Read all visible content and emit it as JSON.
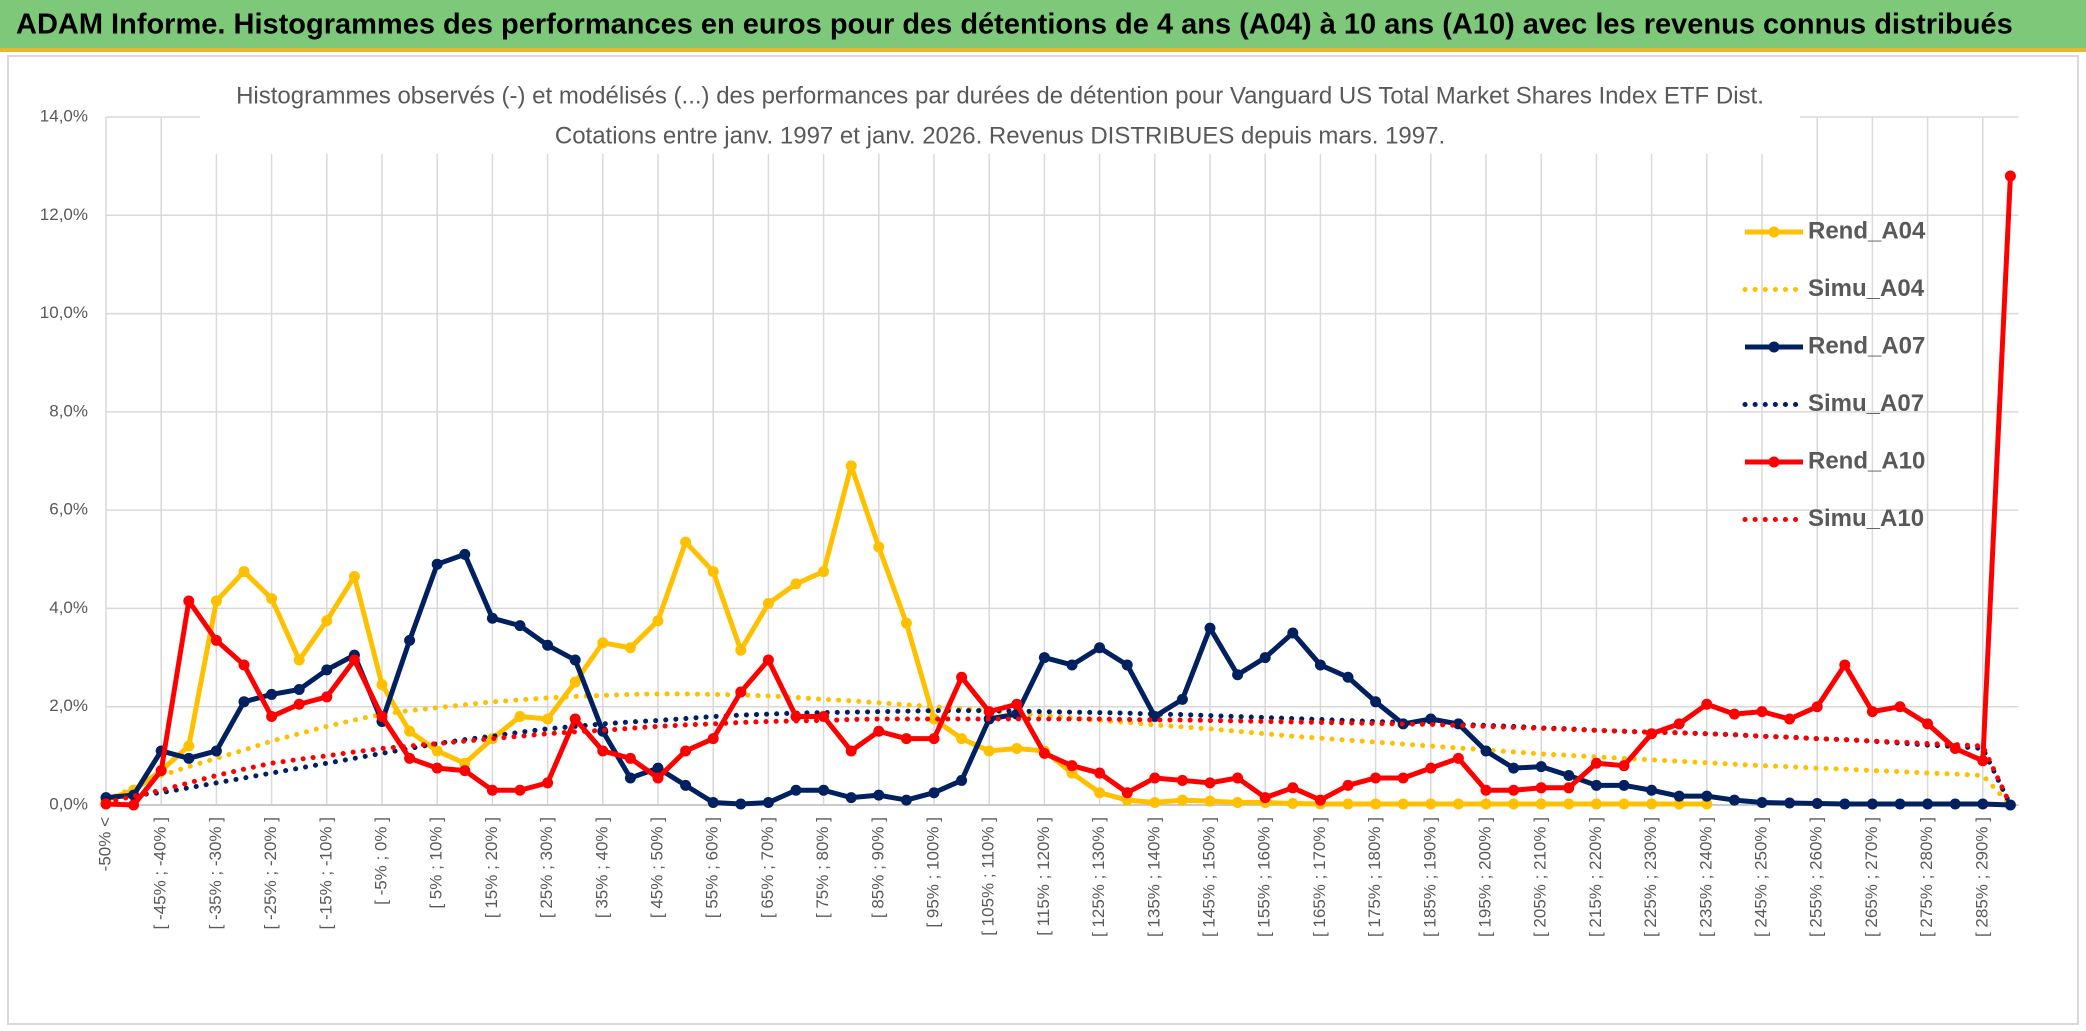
{
  "header": {
    "title": "ADAM Informe. Histogrammes des performances en euros pour des détentions de 4 ans (A04) à 10 ans (A10) avec les revenus connus distribués"
  },
  "chart_data": {
    "type": "line",
    "title": "Histogrammes observés (-) et modélisés (...) des performances par durées de détention pour Vanguard US Total Market Shares Index ETF Dist.",
    "subtitle": "Cotations entre janv. 1997 et janv. 2026. Revenus DISTRIBUES depuis mars. 1997.",
    "grid": true,
    "legend": "right",
    "categories": [
      "-50% <",
      null,
      "[ -45% ; -40% ]",
      null,
      "[ -35% ; -30% ]",
      null,
      "[ -25% ; -20% ]",
      null,
      "[ -15% ; -10% ]",
      null,
      "[ -5% ; 0% ]",
      null,
      "[ 5% ; 10% ]",
      null,
      "[ 15% ; 20% ]",
      null,
      "[ 25% ; 30% ]",
      null,
      "[ 35% ; 40% ]",
      null,
      "[ 45% ; 50% ]",
      null,
      "[ 55% ; 60% ]",
      null,
      "[ 65% ; 70% ]",
      null,
      "[ 75% ; 80% ]",
      null,
      "[ 85% ; 90% ]",
      null,
      "[ 95% ; 100% ]",
      null,
      "[ 105% ; 110% ]",
      null,
      "[ 115% ; 120% ]",
      null,
      "[ 125% ; 130% ]",
      null,
      "[ 135% ; 140% ]",
      null,
      "[ 145% ; 150% ]",
      null,
      "[ 155% ; 160% ]",
      null,
      "[ 165% ; 170% ]",
      null,
      "[ 175% ; 180% ]",
      null,
      "[ 185% ; 190% ]",
      null,
      "[ 195% ; 200% ]",
      null,
      "[ 205% ; 210% ]",
      null,
      "[ 215% ; 220% ]",
      null,
      "[ 225% ; 230% ]",
      null,
      "[ 235% ; 240% ]",
      null,
      "[ 245% ; 250% ]",
      null,
      "[ 255% ; 260% ]",
      null,
      "[ 265% ; 270% ]",
      null,
      "[ 275% ; 280% ]",
      null,
      "[ 285% ; 290% ]",
      null
    ],
    "ylim": [
      0,
      14
    ],
    "yticks": [
      {
        "value": 0,
        "label": "0,0%"
      },
      {
        "value": 2,
        "label": "2,0%"
      },
      {
        "value": 4,
        "label": "4,0%"
      },
      {
        "value": 6,
        "label": "6,0%"
      },
      {
        "value": 8,
        "label": "8,0%"
      },
      {
        "value": 10,
        "label": "10,0%"
      },
      {
        "value": 12,
        "label": "12,0%"
      },
      {
        "value": 14,
        "label": "14,0%"
      }
    ],
    "series": [
      {
        "name": "Rend_A04",
        "color": "#ffc000",
        "style": "solid",
        "markers": true,
        "values": [
          0.1,
          0.3,
          0.7,
          1.2,
          4.15,
          4.75,
          4.2,
          2.95,
          3.75,
          4.65,
          2.45,
          1.5,
          1.1,
          0.85,
          1.35,
          1.8,
          1.75,
          2.5,
          3.3,
          3.2,
          3.75,
          5.35,
          4.75,
          3.15,
          4.1,
          4.5,
          4.75,
          6.9,
          5.25,
          3.7,
          1.75,
          1.35,
          1.1,
          1.15,
          1.1,
          0.65,
          0.25,
          0.1,
          0.05,
          0.1,
          0.08,
          0.05,
          0.05,
          0.03,
          0.02,
          0.02,
          0.02,
          0.02,
          0.02,
          0.02,
          0.02,
          0.02,
          0.02,
          0.02,
          0.02,
          0.02,
          0.02,
          0.02,
          0.02,
          null,
          null,
          null,
          null,
          null,
          null,
          null,
          null,
          null,
          null,
          null
        ]
      },
      {
        "name": "Simu_A04",
        "color": "#ffc000",
        "style": "dotted",
        "markers": false,
        "values": [
          0.1,
          0.35,
          0.6,
          0.78,
          0.95,
          1.12,
          1.3,
          1.45,
          1.6,
          1.73,
          1.85,
          1.92,
          1.98,
          2.04,
          2.1,
          2.14,
          2.18,
          2.21,
          2.23,
          2.25,
          2.26,
          2.26,
          2.25,
          2.24,
          2.22,
          2.19,
          2.15,
          2.12,
          2.08,
          2.04,
          2.0,
          1.96,
          1.92,
          1.87,
          1.82,
          1.77,
          1.72,
          1.68,
          1.63,
          1.59,
          1.55,
          1.5,
          1.45,
          1.4,
          1.36,
          1.32,
          1.28,
          1.24,
          1.2,
          1.16,
          1.12,
          1.08,
          1.04,
          1.01,
          0.98,
          0.95,
          0.92,
          0.89,
          0.86,
          0.83,
          0.8,
          0.78,
          0.75,
          0.73,
          0.7,
          0.68,
          0.65,
          0.63,
          0.6,
          0.0
        ]
      },
      {
        "name": "Rend_A07",
        "color": "#002060",
        "style": "solid",
        "markers": true,
        "values": [
          0.15,
          0.2,
          1.1,
          0.95,
          1.1,
          2.1,
          2.25,
          2.35,
          2.75,
          3.05,
          1.7,
          3.35,
          4.9,
          5.1,
          3.8,
          3.65,
          3.25,
          2.95,
          1.5,
          0.55,
          0.75,
          0.4,
          0.05,
          0.02,
          0.05,
          0.3,
          0.3,
          0.15,
          0.2,
          0.1,
          0.25,
          0.5,
          1.75,
          1.85,
          3.0,
          2.85,
          3.2,
          2.85,
          1.8,
          2.15,
          3.6,
          2.65,
          3.0,
          3.5,
          2.85,
          2.6,
          2.1,
          1.65,
          1.75,
          1.65,
          1.1,
          0.75,
          0.78,
          0.6,
          0.4,
          0.4,
          0.3,
          0.18,
          0.18,
          0.1,
          0.05,
          0.04,
          0.03,
          0.02,
          0.02,
          0.02,
          0.02,
          0.02,
          0.02,
          0.0
        ]
      },
      {
        "name": "Simu_A07",
        "color": "#002060",
        "style": "dotted",
        "markers": false,
        "values": [
          0.15,
          0.2,
          0.25,
          0.35,
          0.45,
          0.55,
          0.65,
          0.75,
          0.85,
          0.95,
          1.05,
          1.15,
          1.25,
          1.33,
          1.4,
          1.48,
          1.55,
          1.6,
          1.65,
          1.69,
          1.72,
          1.76,
          1.8,
          1.83,
          1.85,
          1.87,
          1.88,
          1.89,
          1.9,
          1.91,
          1.92,
          1.92,
          1.92,
          1.91,
          1.9,
          1.89,
          1.88,
          1.87,
          1.85,
          1.84,
          1.82,
          1.8,
          1.78,
          1.76,
          1.74,
          1.72,
          1.7,
          1.68,
          1.66,
          1.64,
          1.62,
          1.6,
          1.57,
          1.55,
          1.52,
          1.5,
          1.48,
          1.47,
          1.45,
          1.43,
          1.4,
          1.38,
          1.35,
          1.33,
          1.3,
          1.26,
          1.22,
          1.19,
          1.15,
          0.0
        ]
      },
      {
        "name": "Rend_A10",
        "color": "#ff0000",
        "style": "solid",
        "markers": true,
        "values": [
          0.02,
          0.0,
          0.7,
          4.15,
          3.35,
          2.85,
          1.8,
          2.05,
          2.2,
          2.95,
          1.8,
          0.95,
          0.75,
          0.7,
          0.3,
          0.3,
          0.45,
          1.75,
          1.1,
          0.95,
          0.55,
          1.1,
          1.35,
          2.3,
          2.95,
          1.8,
          1.8,
          1.1,
          1.5,
          1.35,
          1.35,
          2.6,
          1.9,
          2.05,
          1.05,
          0.8,
          0.65,
          0.25,
          0.55,
          0.5,
          0.45,
          0.55,
          0.15,
          0.35,
          0.1,
          0.4,
          0.55,
          0.55,
          0.75,
          0.95,
          0.3,
          0.3,
          0.35,
          0.35,
          0.85,
          0.8,
          1.45,
          1.65,
          2.05,
          1.85,
          1.9,
          1.75,
          2.0,
          2.85,
          1.9,
          2.0,
          1.65,
          1.15,
          0.9,
          12.8
        ]
      },
      {
        "name": "Simu_A10",
        "color": "#ff0000",
        "style": "dotted",
        "markers": false,
        "values": [
          0.05,
          0.18,
          0.3,
          0.45,
          0.6,
          0.73,
          0.85,
          0.93,
          1.0,
          1.08,
          1.15,
          1.2,
          1.25,
          1.3,
          1.35,
          1.4,
          1.45,
          1.49,
          1.52,
          1.56,
          1.6,
          1.63,
          1.65,
          1.68,
          1.7,
          1.71,
          1.72,
          1.74,
          1.75,
          1.75,
          1.75,
          1.75,
          1.75,
          1.75,
          1.75,
          1.75,
          1.75,
          1.74,
          1.73,
          1.73,
          1.72,
          1.71,
          1.7,
          1.69,
          1.68,
          1.67,
          1.66,
          1.65,
          1.64,
          1.62,
          1.6,
          1.58,
          1.56,
          1.54,
          1.52,
          1.5,
          1.48,
          1.47,
          1.45,
          1.43,
          1.4,
          1.38,
          1.35,
          1.33,
          1.3,
          1.28,
          1.25,
          1.23,
          1.2,
          0.0
        ]
      }
    ]
  }
}
